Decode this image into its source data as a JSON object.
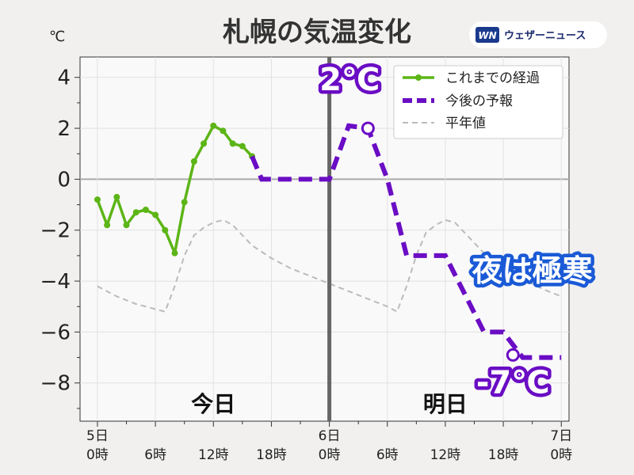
{
  "title": "札幌の気温変化",
  "unit": "℃",
  "brand": "ウェザーニュース",
  "chart_data": {
    "type": "line",
    "xlim": [
      -1.8,
      48.8
    ],
    "ylim": [
      -9.5,
      4.8
    ],
    "yticks": [
      4,
      2,
      0,
      -2,
      -4,
      -6,
      -8
    ],
    "ytick_labels": [
      "4",
      "2",
      "0",
      "−2",
      "−4",
      "−6",
      "−8"
    ],
    "xticks": [
      {
        "x": 0,
        "label": "5日\n0時"
      },
      {
        "x": 6,
        "label": "6時"
      },
      {
        "x": 12,
        "label": "12時"
      },
      {
        "x": 18,
        "label": "18時"
      },
      {
        "x": 24,
        "label": "6日\n0時"
      },
      {
        "x": 30,
        "label": "6時"
      },
      {
        "x": 36,
        "label": "12時"
      },
      {
        "x": 42,
        "label": "18時"
      },
      {
        "x": 48,
        "label": "7日\n0時"
      }
    ],
    "divider_x": 24,
    "day_labels": [
      {
        "x": 12,
        "text": "今日"
      },
      {
        "x": 36,
        "text": "明日"
      }
    ],
    "series": [
      {
        "name": "これまでの経過",
        "style": "solid-markers",
        "color": "#5cb516",
        "x": [
          0,
          1,
          2,
          3,
          4,
          5,
          6,
          7,
          8,
          9,
          10,
          11,
          12,
          13,
          14,
          15,
          16
        ],
        "values": [
          -0.8,
          -1.8,
          -0.7,
          -1.8,
          -1.3,
          -1.2,
          -1.4,
          -2.0,
          -2.9,
          -0.9,
          0.7,
          1.4,
          2.1,
          1.9,
          1.4,
          1.3,
          0.9
        ]
      },
      {
        "name": "今後の予報",
        "style": "dashed-thick",
        "color": "#6a0dc4",
        "x": [
          16,
          17,
          18,
          24,
          26,
          28,
          30,
          32,
          36,
          40,
          42,
          44,
          48
        ],
        "values": [
          0.9,
          0.0,
          0.0,
          0.0,
          2.1,
          2.0,
          0.0,
          -3.0,
          -3.0,
          -6.0,
          -6.0,
          -7.0,
          -7.0
        ]
      },
      {
        "name": "平年値",
        "style": "dashed-thin",
        "color": "#bbbbbb",
        "x": [
          0,
          2,
          4,
          6,
          7,
          8,
          9,
          10,
          11,
          12,
          13,
          14,
          15,
          16,
          18,
          20,
          22,
          24,
          26,
          28,
          30,
          31,
          32,
          33,
          34,
          35,
          36,
          37,
          38,
          39,
          40,
          42,
          44,
          46,
          48
        ],
        "values": [
          -4.2,
          -4.6,
          -4.9,
          -5.1,
          -5.2,
          -4.2,
          -3.0,
          -2.2,
          -1.9,
          -1.7,
          -1.6,
          -1.8,
          -2.2,
          -2.6,
          -3.1,
          -3.5,
          -3.8,
          -4.1,
          -4.4,
          -4.7,
          -5.0,
          -5.2,
          -4.2,
          -3.0,
          -2.1,
          -1.8,
          -1.6,
          -1.7,
          -2.1,
          -2.5,
          -2.9,
          -3.5,
          -3.9,
          -4.3,
          -4.6
        ]
      }
    ],
    "open_markers": [
      {
        "x": 28,
        "y": 2.0
      },
      {
        "x": 43,
        "y": -6.9
      }
    ],
    "annotations": [
      {
        "text": "2℃",
        "x": 26.1,
        "y": 3.5,
        "color": "#6a0dc4",
        "size": 40
      },
      {
        "text": "夜は極寒",
        "x": 45.0,
        "y": -4.0,
        "color": "#1a5ad6",
        "size": 38
      },
      {
        "text": "-7℃",
        "x": 43.0,
        "y": -8.4,
        "color": "#6a0dc4",
        "size": 40
      }
    ],
    "legend_position": "top-right",
    "grid": true
  }
}
